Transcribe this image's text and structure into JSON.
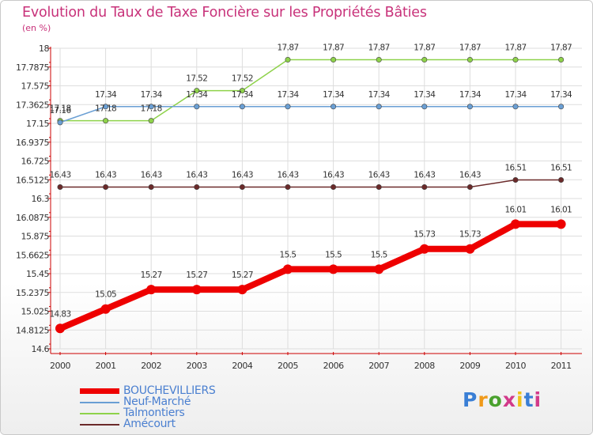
{
  "chart_data": {
    "type": "line",
    "title": "Evolution du Taux de Taxe Foncière sur les Propriétés Bâties",
    "unit_label": "(en %)",
    "categories": [
      "2000",
      "2001",
      "2002",
      "2003",
      "2004",
      "2005",
      "2006",
      "2007",
      "2008",
      "2009",
      "2010",
      "2011"
    ],
    "ylim": [
      14.6,
      18
    ],
    "ytick_labels": [
      "18",
      "17.7875",
      "17.575",
      "17.3625",
      "17.15",
      "16.9375",
      "16.725",
      "16.5125",
      "16.3",
      "16.0875",
      "15.875",
      "15.6625",
      "15.45",
      "15.2375",
      "15.025",
      "14.8125",
      "14.6"
    ],
    "series": [
      {
        "name": "BOUCHEVILLIERS",
        "color": "#ee0000",
        "values": [
          14.83,
          15.05,
          15.27,
          15.27,
          15.27,
          15.5,
          15.5,
          15.5,
          15.73,
          15.73,
          16.01,
          16.01
        ],
        "labels": [
          "14.83",
          "15.05",
          "15.27",
          "15.27",
          "15.27",
          "15.5",
          "15.5",
          "15.5",
          "15.73",
          "15.73",
          "16.01",
          "16.01"
        ]
      },
      {
        "name": "Neuf-Marché",
        "color": "#6a9fd4",
        "values": [
          17.16,
          17.34,
          17.34,
          17.34,
          17.34,
          17.34,
          17.34,
          17.34,
          17.34,
          17.34,
          17.34,
          17.34
        ],
        "labels": [
          "17.16",
          "17.34",
          "17.34",
          "17.34",
          "17.34",
          "17.34",
          "17.34",
          "17.34",
          "17.34",
          "17.34",
          "17.34",
          "17.34"
        ]
      },
      {
        "name": "Talmontiers",
        "color": "#8ed24a",
        "values": [
          17.18,
          17.18,
          17.18,
          17.52,
          17.52,
          17.87,
          17.87,
          17.87,
          17.87,
          17.87,
          17.87,
          17.87
        ],
        "labels": [
          "17.18",
          "17.18",
          "17.18",
          "17.52",
          "17.52",
          "17.87",
          "17.87",
          "17.87",
          "17.87",
          "17.87",
          "17.87",
          "17.87"
        ]
      },
      {
        "name": "Amécourt",
        "color": "#6b2a2a",
        "values": [
          16.43,
          16.43,
          16.43,
          16.43,
          16.43,
          16.43,
          16.43,
          16.43,
          16.43,
          16.43,
          16.51,
          16.51
        ],
        "labels": [
          "16.43",
          "16.43",
          "16.43",
          "16.43",
          "16.43",
          "16.43",
          "16.43",
          "16.43",
          "16.43",
          "16.43",
          "16.51",
          "16.51"
        ]
      }
    ]
  },
  "legend": {
    "items": [
      {
        "label": "BOUCHEVILLIERS",
        "color": "#ee0000"
      },
      {
        "label": "Neuf-Marché",
        "color": "#6a9fd4"
      },
      {
        "label": "Talmontiers",
        "color": "#8ed24a"
      },
      {
        "label": "Amécourt",
        "color": "#6b2a2a"
      }
    ]
  },
  "logo": {
    "text": "Proxiti"
  }
}
